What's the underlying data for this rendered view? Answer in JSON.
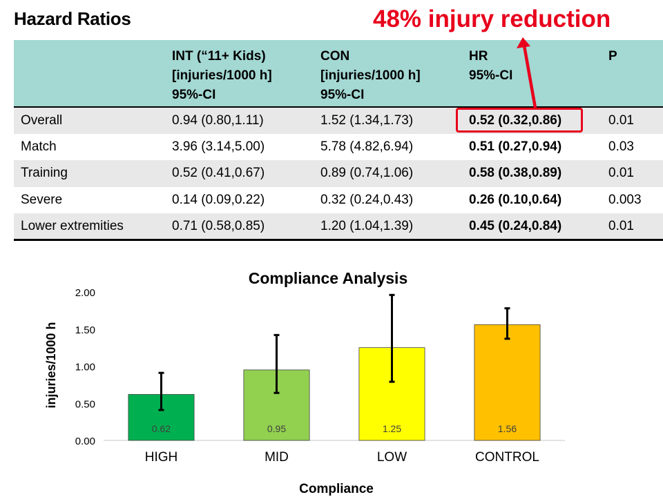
{
  "page": {
    "title": "Hazard Ratios",
    "headline": "48% injury reduction",
    "headline_color": "#e8001c"
  },
  "table": {
    "header_bg": "#a3d8d3",
    "headers": [
      "",
      "INT (“11+ Kids)\n[injuries/1000 h]\n95%-CI",
      "CON\n[injuries/1000 h]\n95%-CI",
      "HR\n95%-CI",
      "P"
    ],
    "rows": [
      {
        "label": "Overall",
        "int": "0.94 (0.80,1.11)",
        "con": "1.52 (1.34,1.73)",
        "hr": "0.52 (0.32,0.86)",
        "p": "0.01"
      },
      {
        "label": "Match",
        "int": "3.96 (3.14,5.00)",
        "con": "5.78 (4.82,6.94)",
        "hr": "0.51 (0.27,0.94)",
        "p": "0.03"
      },
      {
        "label": "Training",
        "int": "0.52 (0.41,0.67)",
        "con": "0.89 (0.74,1.06)",
        "hr": "0.58 (0.38,0.89)",
        "p": "0.01"
      },
      {
        "label": "Severe",
        "int": "0.14 (0.09,0.22)",
        "con": "0.32 (0.24,0.43)",
        "hr": "0.26 (0.10,0.64)",
        "p": "0.003"
      },
      {
        "label": "Lower extremities",
        "int": "0.71 (0.58,0.85)",
        "con": "1.20 (1.04,1.39)",
        "hr": "0.45 (0.24,0.84)",
        "p": "0.01"
      }
    ]
  },
  "chart_data": {
    "type": "bar",
    "title": "Compliance Analysis",
    "xlabel": "Compliance",
    "ylabel": "injuries/1000 h",
    "ylim": [
      0,
      2
    ],
    "yticks": [
      "0.00",
      "0.50",
      "1.00",
      "1.50",
      "2.00"
    ],
    "ytick_values": [
      0,
      0.5,
      1.0,
      1.5,
      2.0
    ],
    "grid": false,
    "categories": [
      "HIGH",
      "MID",
      "LOW",
      "CONTROL"
    ],
    "values": [
      0.62,
      0.95,
      1.25,
      1.56
    ],
    "value_labels": [
      "0.62",
      "0.95",
      "1.25",
      "1.56"
    ],
    "error_low": [
      0.41,
      0.64,
      0.79,
      1.37
    ],
    "error_high": [
      0.91,
      1.42,
      1.96,
      1.78
    ],
    "colors": [
      "#00b050",
      "#92d050",
      "#ffff00",
      "#ffc000"
    ]
  }
}
